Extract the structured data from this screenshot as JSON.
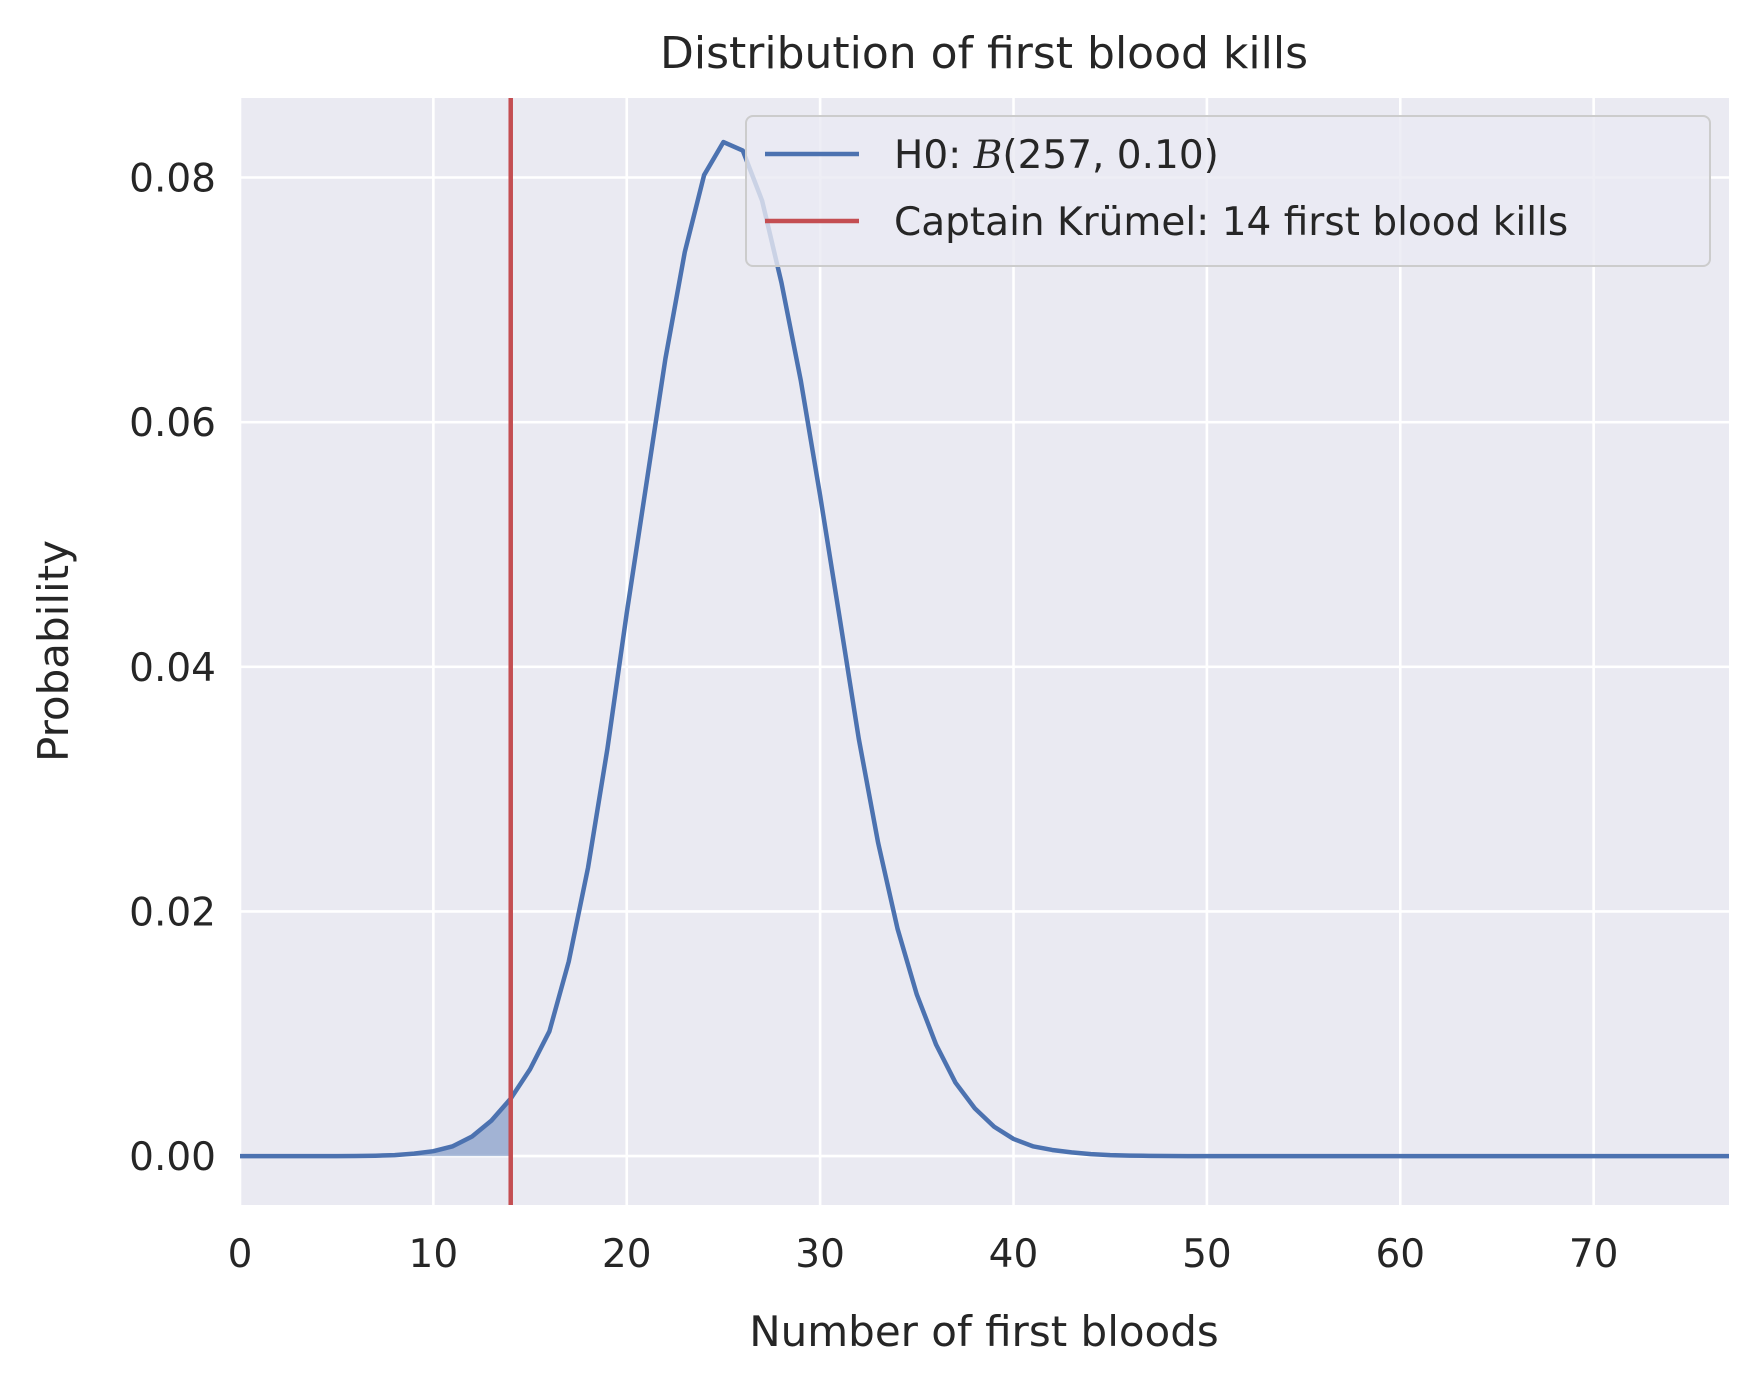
{
  "chart_data": {
    "type": "line",
    "title": "Distribution of first blood kills",
    "xlabel": "Number of first bloods",
    "ylabel": "Probability",
    "xlim": [
      0,
      77
    ],
    "ylim": [
      -0.004,
      0.0865
    ],
    "xticks": [
      0,
      10,
      20,
      30,
      40,
      50,
      60,
      70
    ],
    "xtick_labels": [
      "0",
      "10",
      "20",
      "30",
      "40",
      "50",
      "60",
      "70"
    ],
    "yticks": [
      0.0,
      0.02,
      0.04,
      0.06,
      0.08
    ],
    "ytick_labels": [
      "0.00",
      "0.02",
      "0.04",
      "0.06",
      "0.08"
    ],
    "grid": true,
    "legend_position": "top-right",
    "series": [
      {
        "name": "H0: B(257, 0.10)",
        "legend_prefix": "H0: ",
        "legend_math": "B",
        "legend_suffix": "(257, 0.10)",
        "color": "#4c72b0",
        "x": [
          0,
          1,
          2,
          3,
          4,
          5,
          6,
          7,
          8,
          9,
          10,
          11,
          12,
          13,
          14,
          15,
          16,
          17,
          18,
          19,
          20,
          21,
          22,
          23,
          24,
          25,
          26,
          27,
          28,
          29,
          30,
          31,
          32,
          33,
          34,
          35,
          36,
          37,
          38,
          39,
          40,
          41,
          42,
          43,
          44,
          45,
          46,
          47,
          48,
          49,
          50,
          51,
          52,
          53,
          54,
          55,
          56,
          57,
          58,
          59,
          60,
          61,
          62,
          63,
          64,
          65,
          66,
          67,
          68,
          69,
          70,
          71,
          72,
          73,
          74,
          75,
          76,
          77
        ],
        "y": [
          0,
          0,
          0,
          0,
          0,
          0,
          1e-05,
          3e-05,
          8e-05,
          0.0002,
          0.0004,
          0.0008,
          0.0016,
          0.0029,
          0.0047,
          0.0071,
          0.0102,
          0.0159,
          0.0236,
          0.0333,
          0.0444,
          0.0548,
          0.0652,
          0.0739,
          0.0802,
          0.0829,
          0.0822,
          0.0781,
          0.0714,
          0.0634,
          0.054,
          0.0441,
          0.0341,
          0.0256,
          0.0186,
          0.0132,
          0.0091,
          0.006,
          0.0039,
          0.0024,
          0.0014,
          0.0008,
          0.0005,
          0.0003,
          0.00016,
          8e-05,
          4e-05,
          2e-05,
          1e-05,
          0,
          0,
          0,
          0,
          0,
          0,
          0,
          0,
          0,
          0,
          0,
          0,
          0,
          0,
          0,
          0,
          0,
          0,
          0,
          0,
          0,
          0,
          0,
          0,
          0,
          0,
          0,
          0,
          0
        ],
        "shaded_region": {
          "x_from": 0,
          "x_to": 14
        }
      }
    ],
    "vline": {
      "name": "Captain Krümel: 14 first blood kills",
      "x": 14,
      "color": "#c44e52"
    }
  },
  "legend": {
    "h0_prefix": "H0: ",
    "h0_math": "B",
    "h0_suffix": "(257, 0.10)",
    "vline_label": "Captain Krümel: 14 first blood kills"
  },
  "colors": {
    "plot_background": "#eaeaf2",
    "grid": "#ffffff",
    "series": "#4c72b0",
    "vline": "#c44e52",
    "shade": "#4c72b0"
  }
}
